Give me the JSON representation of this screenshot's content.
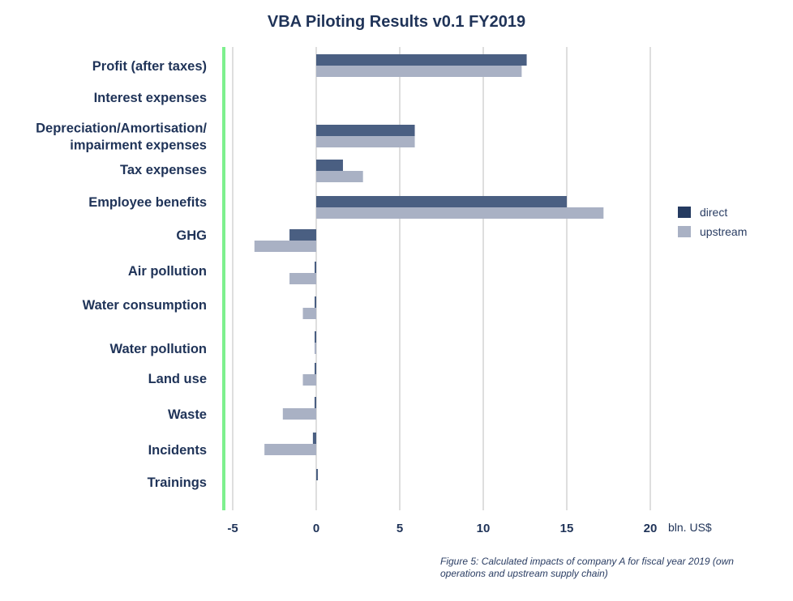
{
  "title": "VBA Piloting Results v0.1 FY2019",
  "caption": "Figure 5: Calculated impacts of company A for fiscal year 2019 (own operations and upstream supply chain)",
  "colors": {
    "direct": "#4a5f82",
    "upstream": "#a9b1c4",
    "accent_line": "#7ef08e",
    "grid": "#d4d4d4",
    "text": "#1f3358"
  },
  "legend": [
    {
      "name": "direct",
      "color": "#243a60"
    },
    {
      "name": "upstream",
      "color": "#a9b1c4"
    }
  ],
  "chart_data": {
    "type": "bar",
    "orientation": "horizontal",
    "title": "VBA Piloting Results v0.1 FY2019",
    "xlabel": "bln. US$",
    "xlim": [
      -5,
      20
    ],
    "xticks": [
      -5,
      0,
      5,
      10,
      15,
      20
    ],
    "categories": [
      [
        "Profit (after taxes)"
      ],
      [
        "Interest expenses"
      ],
      [
        "Depreciation/Amortisation/",
        "impairment expenses"
      ],
      [
        "Tax expenses"
      ],
      [
        "Employee benefits"
      ],
      [
        "GHG"
      ],
      [
        "Air pollution"
      ],
      [
        "Water consumption"
      ],
      [
        "Water pollution"
      ],
      [
        "Land use"
      ],
      [
        "Waste"
      ],
      [
        "Incidents"
      ],
      [
        "Trainings"
      ]
    ],
    "series": [
      {
        "name": "direct",
        "values": [
          12.6,
          0,
          5.9,
          1.6,
          15.0,
          -1.6,
          -0.05,
          -0.05,
          -0.05,
          -0.05,
          -0.1,
          -0.2,
          0.1
        ]
      },
      {
        "name": "upstream",
        "values": [
          12.3,
          0,
          5.9,
          2.8,
          17.2,
          -3.7,
          -1.6,
          -0.8,
          -0.1,
          -0.8,
          -2.0,
          -3.1,
          0
        ]
      }
    ]
  }
}
